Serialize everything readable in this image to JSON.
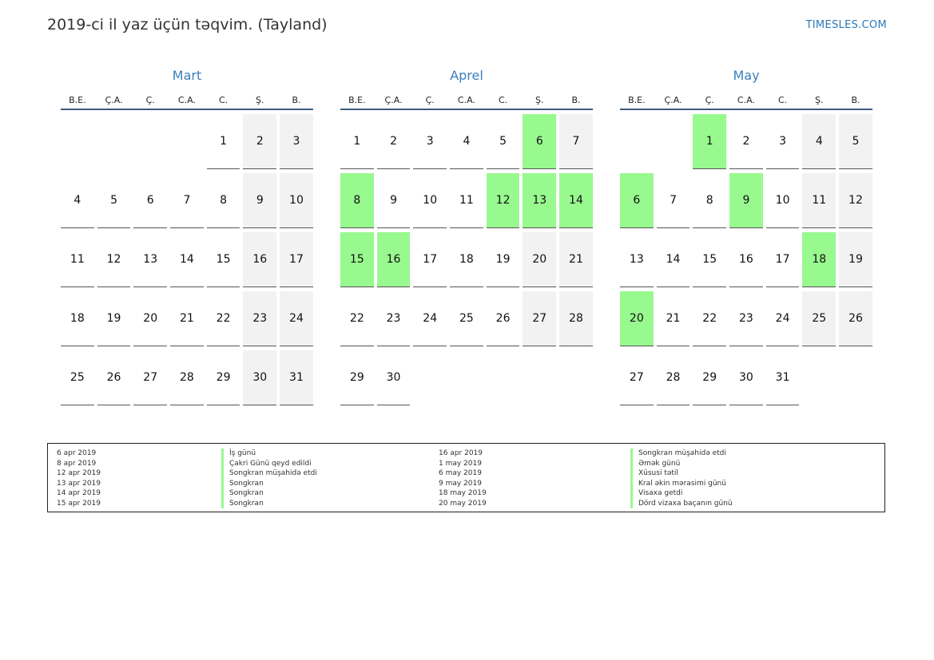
{
  "header": {
    "title": "2019-ci il yaz üçün təqvim. (Tayland)",
    "site": "TIMESLES.COM"
  },
  "colors": {
    "accent": "#3a7fba",
    "holiday": "#98f98f",
    "weekend": "#f2f2f2",
    "rule": "#3d5a80"
  },
  "weekdays": [
    "B.E.",
    "Ç.A.",
    "Ç.",
    "C.A.",
    "C.",
    "Ş.",
    "B."
  ],
  "months": [
    {
      "name": "Mart",
      "start_offset": 4,
      "days": 31,
      "holidays": []
    },
    {
      "name": "Aprel",
      "start_offset": 0,
      "days": 30,
      "holidays": [
        6,
        8,
        12,
        13,
        14,
        15,
        16
      ]
    },
    {
      "name": "May",
      "start_offset": 2,
      "days": 31,
      "holidays": [
        1,
        6,
        9,
        18,
        20
      ]
    }
  ],
  "legend": [
    {
      "date": "6 apr 2019",
      "name": "İş günü"
    },
    {
      "date": "8 apr 2019",
      "name": "Çakri Günü qeyd edildi"
    },
    {
      "date": "12 apr 2019",
      "name": "Songkran müşahidə etdi"
    },
    {
      "date": "13 apr 2019",
      "name": "Songkran"
    },
    {
      "date": "14 apr 2019",
      "name": "Songkran"
    },
    {
      "date": "15 apr 2019",
      "name": "Songkran"
    },
    {
      "date": "16 apr 2019",
      "name": "Songkran müşahidə etdi"
    },
    {
      "date": "1 may 2019",
      "name": "Əmək günü"
    },
    {
      "date": "6 may 2019",
      "name": "Xüsusi tətil"
    },
    {
      "date": "9 may 2019",
      "name": "Kral əkin mərasimi günü"
    },
    {
      "date": "18 may 2019",
      "name": "Visaxa getdi"
    },
    {
      "date": "20 may 2019",
      "name": "Dörd vizaxa baçanın günü"
    }
  ]
}
